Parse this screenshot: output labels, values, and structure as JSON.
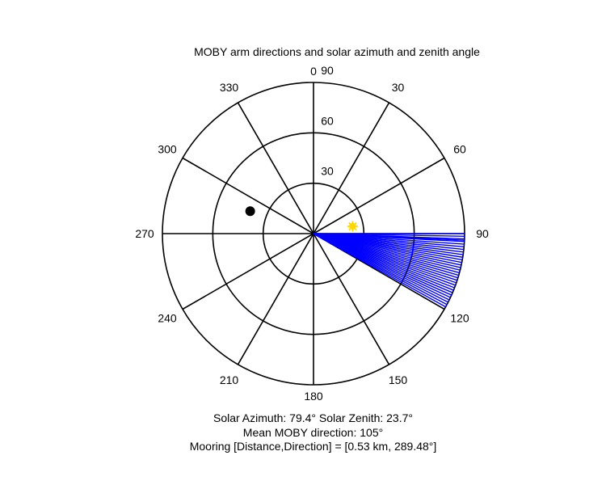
{
  "chart_data": {
    "type": "polar",
    "title": "MOBY arm directions and solar azimuth and zenith angle",
    "angle_convention": "compass (0 at top, clockwise)",
    "radial_axis": {
      "label_values": [
        30,
        60,
        90
      ],
      "max": 90,
      "label_angle_deg": 0
    },
    "angle_ticks": [
      0,
      30,
      60,
      90,
      120,
      150,
      180,
      210,
      240,
      270,
      300,
      330
    ],
    "angle_tick_labels": [
      "0",
      "30",
      "60",
      "90",
      "120",
      "150",
      "180",
      "210",
      "240",
      "270",
      "300",
      "330"
    ],
    "spoke_angles": [
      0,
      30,
      60,
      90,
      120,
      150,
      180,
      210,
      240,
      270,
      300,
      330
    ],
    "series": [
      {
        "name": "MOBY arm directions",
        "kind": "rays",
        "color": "#0000ff",
        "r": 90,
        "angles_deg": [
          90.0,
          91.0,
          92.0,
          92.5,
          93.0,
          94.0,
          95.0,
          96.0,
          97.0,
          98.0,
          99.0,
          100.0,
          101.0,
          102.0,
          103.0,
          104.0,
          105.0,
          106.0,
          107.0,
          108.0,
          109.0,
          110.0,
          111.0,
          112.0,
          113.0,
          114.0,
          115.0,
          116.0,
          117.0,
          118.0,
          119.0
        ]
      },
      {
        "name": "Solar position",
        "kind": "marker",
        "marker": "star",
        "color": "#ffd700",
        "angle_deg": 79.4,
        "r": 23.7
      },
      {
        "name": "Mooring",
        "kind": "marker",
        "marker": "dot",
        "color": "#000000",
        "angle_deg": 289.48,
        "r": 40
      }
    ],
    "annotations": [
      {
        "id": "sun",
        "text": "Solar Azimuth: 79.4°    Solar Zenith: 23.7°"
      },
      {
        "id": "mean",
        "text": "Mean MOBY direction: 105°"
      },
      {
        "id": "mooring",
        "text": "Mooring [Distance,Direction] = [0.53 km, 289.48°]"
      }
    ]
  }
}
